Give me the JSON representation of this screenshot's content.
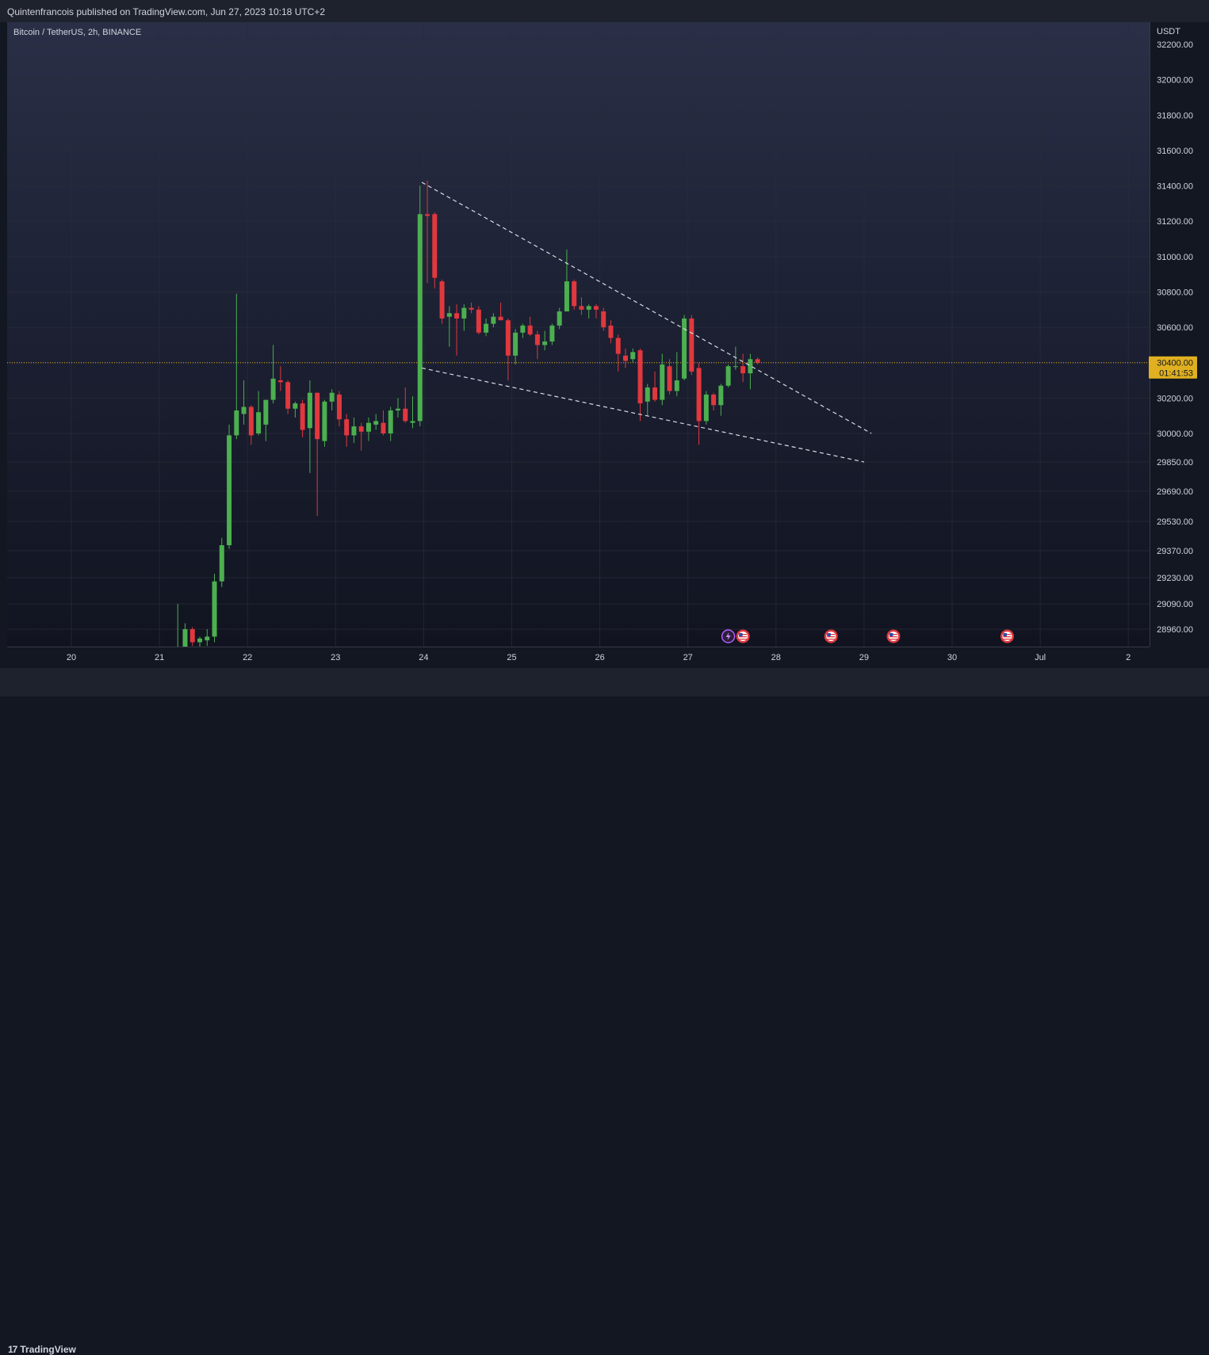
{
  "header": {
    "publish_text": "Quintenfrancois published on TradingView.com, Jun 27, 2023 10:18 UTC+2"
  },
  "footer": {
    "brand": "TradingView",
    "brand_mark": "17"
  },
  "chart_data": {
    "type": "candlestick",
    "title": "Bitcoin / TetherUS, 2h, BINANCE",
    "currency": "USDT",
    "y_ticks": [
      "32200.00",
      "32000.00",
      "31800.00",
      "31600.00",
      "31400.00",
      "31200.00",
      "31000.00",
      "30800.00",
      "30600.00",
      "30400.00",
      "30200.00",
      "30000.00",
      "29850.00",
      "29690.00",
      "29530.00",
      "29370.00",
      "29230.00",
      "29090.00",
      "28960.00"
    ],
    "x_ticks": [
      "20",
      "21",
      "22",
      "23",
      "24",
      "25",
      "26",
      "27",
      "28",
      "29",
      "30",
      "Jul",
      "2"
    ],
    "last_price": "30400.00",
    "countdown": "01:41:53",
    "colors": {
      "up": "#4caf50",
      "down": "#e0383e",
      "price_line": "#e0b020",
      "trendline": "#d8dce6"
    },
    "candles": [
      {
        "t": "21 05:00",
        "o": 28820,
        "h": 29090,
        "l": 28790,
        "c": 28850
      },
      {
        "t": "21 07:00",
        "o": 28850,
        "h": 28990,
        "l": 28800,
        "c": 28960
      },
      {
        "t": "21 09:00",
        "o": 28960,
        "h": 28970,
        "l": 28870,
        "c": 28890
      },
      {
        "t": "21 11:00",
        "o": 28890,
        "h": 28920,
        "l": 28850,
        "c": 28910
      },
      {
        "t": "21 13:00",
        "o": 28900,
        "h": 28960,
        "l": 28870,
        "c": 28920
      },
      {
        "t": "21 15:00",
        "o": 28920,
        "h": 29250,
        "l": 28890,
        "c": 29210
      },
      {
        "t": "21 17:00",
        "o": 29210,
        "h": 29440,
        "l": 29180,
        "c": 29400
      },
      {
        "t": "21 19:00",
        "o": 29400,
        "h": 30050,
        "l": 29380,
        "c": 29990
      },
      {
        "t": "21 21:00",
        "o": 29990,
        "h": 30790,
        "l": 29970,
        "c": 30130
      },
      {
        "t": "21 23:00",
        "o": 30110,
        "h": 30300,
        "l": 30050,
        "c": 30150
      },
      {
        "t": "22 01:00",
        "o": 30150,
        "h": 30160,
        "l": 29940,
        "c": 29990
      },
      {
        "t": "22 03:00",
        "o": 30000,
        "h": 30240,
        "l": 29990,
        "c": 30120
      },
      {
        "t": "22 05:00",
        "o": 30050,
        "h": 30190,
        "l": 29960,
        "c": 30190
      },
      {
        "t": "22 07:00",
        "o": 30190,
        "h": 30500,
        "l": 30170,
        "c": 30310
      },
      {
        "t": "22 09:00",
        "o": 30300,
        "h": 30380,
        "l": 30240,
        "c": 30290
      },
      {
        "t": "22 11:00",
        "o": 30290,
        "h": 30300,
        "l": 30110,
        "c": 30140
      },
      {
        "t": "22 13:00",
        "o": 30140,
        "h": 30180,
        "l": 30090,
        "c": 30170
      },
      {
        "t": "22 15:00",
        "o": 30170,
        "h": 30190,
        "l": 29980,
        "c": 30020
      },
      {
        "t": "22 17:00",
        "o": 30030,
        "h": 30300,
        "l": 29790,
        "c": 30230
      },
      {
        "t": "22 19:00",
        "o": 30230,
        "h": 30230,
        "l": 29560,
        "c": 29970
      },
      {
        "t": "22 21:00",
        "o": 29960,
        "h": 30190,
        "l": 29930,
        "c": 30180
      },
      {
        "t": "22 23:00",
        "o": 30180,
        "h": 30250,
        "l": 30130,
        "c": 30230
      },
      {
        "t": "23 01:00",
        "o": 30220,
        "h": 30240,
        "l": 30040,
        "c": 30080
      },
      {
        "t": "23 03:00",
        "o": 30080,
        "h": 30110,
        "l": 29930,
        "c": 29990
      },
      {
        "t": "23 05:00",
        "o": 29990,
        "h": 30090,
        "l": 29950,
        "c": 30040
      },
      {
        "t": "23 07:00",
        "o": 30040,
        "h": 30060,
        "l": 29910,
        "c": 30010
      },
      {
        "t": "23 09:00",
        "o": 30010,
        "h": 30090,
        "l": 29960,
        "c": 30060
      },
      {
        "t": "23 11:00",
        "o": 30050,
        "h": 30110,
        "l": 30020,
        "c": 30070
      },
      {
        "t": "23 13:00",
        "o": 30060,
        "h": 30130,
        "l": 29990,
        "c": 30000
      },
      {
        "t": "23 15:00",
        "o": 30000,
        "h": 30150,
        "l": 29960,
        "c": 30130
      },
      {
        "t": "23 17:00",
        "o": 30130,
        "h": 30200,
        "l": 30090,
        "c": 30140
      },
      {
        "t": "23 19:00",
        "o": 30140,
        "h": 30260,
        "l": 30060,
        "c": 30070
      },
      {
        "t": "23 21:00",
        "o": 30060,
        "h": 30210,
        "l": 30030,
        "c": 30070
      },
      {
        "t": "23 23:00",
        "o": 30070,
        "h": 31400,
        "l": 30040,
        "c": 31240
      },
      {
        "t": "24 01:00",
        "o": 31240,
        "h": 31430,
        "l": 30850,
        "c": 31230
      },
      {
        "t": "24 03:00",
        "o": 31240,
        "h": 31250,
        "l": 30820,
        "c": 30880
      },
      {
        "t": "24 05:00",
        "o": 30860,
        "h": 30870,
        "l": 30620,
        "c": 30650
      },
      {
        "t": "24 07:00",
        "o": 30660,
        "h": 30720,
        "l": 30490,
        "c": 30680
      },
      {
        "t": "24 09:00",
        "o": 30680,
        "h": 30730,
        "l": 30440,
        "c": 30650
      },
      {
        "t": "24 11:00",
        "o": 30650,
        "h": 30730,
        "l": 30580,
        "c": 30710
      },
      {
        "t": "24 13:00",
        "o": 30710,
        "h": 30740,
        "l": 30680,
        "c": 30700
      },
      {
        "t": "24 15:00",
        "o": 30700,
        "h": 30720,
        "l": 30560,
        "c": 30570
      },
      {
        "t": "24 17:00",
        "o": 30570,
        "h": 30650,
        "l": 30550,
        "c": 30620
      },
      {
        "t": "24 19:00",
        "o": 30620,
        "h": 30680,
        "l": 30600,
        "c": 30660
      },
      {
        "t": "24 21:00",
        "o": 30660,
        "h": 30740,
        "l": 30640,
        "c": 30640
      },
      {
        "t": "24 23:00",
        "o": 30640,
        "h": 30650,
        "l": 30300,
        "c": 30440
      },
      {
        "t": "25 01:00",
        "o": 30440,
        "h": 30590,
        "l": 30390,
        "c": 30570
      },
      {
        "t": "25 03:00",
        "o": 30570,
        "h": 30620,
        "l": 30540,
        "c": 30610
      },
      {
        "t": "25 05:00",
        "o": 30610,
        "h": 30660,
        "l": 30550,
        "c": 30560
      },
      {
        "t": "25 07:00",
        "o": 30560,
        "h": 30580,
        "l": 30420,
        "c": 30500
      },
      {
        "t": "25 09:00",
        "o": 30500,
        "h": 30580,
        "l": 30470,
        "c": 30520
      },
      {
        "t": "25 11:00",
        "o": 30520,
        "h": 30620,
        "l": 30500,
        "c": 30610
      },
      {
        "t": "25 13:00",
        "o": 30610,
        "h": 30710,
        "l": 30590,
        "c": 30690
      },
      {
        "t": "25 15:00",
        "o": 30690,
        "h": 31040,
        "l": 30690,
        "c": 30860
      },
      {
        "t": "25 17:00",
        "o": 30860,
        "h": 30870,
        "l": 30700,
        "c": 30720
      },
      {
        "t": "25 19:00",
        "o": 30720,
        "h": 30770,
        "l": 30670,
        "c": 30700
      },
      {
        "t": "25 21:00",
        "o": 30700,
        "h": 30730,
        "l": 30650,
        "c": 30720
      },
      {
        "t": "25 23:00",
        "o": 30720,
        "h": 30730,
        "l": 30650,
        "c": 30700
      },
      {
        "t": "26 01:00",
        "o": 30690,
        "h": 30710,
        "l": 30580,
        "c": 30600
      },
      {
        "t": "26 03:00",
        "o": 30610,
        "h": 30640,
        "l": 30510,
        "c": 30540
      },
      {
        "t": "26 05:00",
        "o": 30540,
        "h": 30560,
        "l": 30350,
        "c": 30450
      },
      {
        "t": "26 07:00",
        "o": 30440,
        "h": 30480,
        "l": 30370,
        "c": 30410
      },
      {
        "t": "26 09:00",
        "o": 30420,
        "h": 30480,
        "l": 30400,
        "c": 30460
      },
      {
        "t": "26 11:00",
        "o": 30470,
        "h": 30480,
        "l": 30070,
        "c": 30170
      },
      {
        "t": "26 13:00",
        "o": 30180,
        "h": 30280,
        "l": 30100,
        "c": 30260
      },
      {
        "t": "26 15:00",
        "o": 30260,
        "h": 30350,
        "l": 30180,
        "c": 30190
      },
      {
        "t": "26 17:00",
        "o": 30190,
        "h": 30450,
        "l": 30160,
        "c": 30390
      },
      {
        "t": "26 19:00",
        "o": 30380,
        "h": 30420,
        "l": 30220,
        "c": 30240
      },
      {
        "t": "26 21:00",
        "o": 30240,
        "h": 30460,
        "l": 30210,
        "c": 30300
      },
      {
        "t": "26 23:00",
        "o": 30310,
        "h": 30670,
        "l": 30300,
        "c": 30650
      },
      {
        "t": "27 01:00",
        "o": 30650,
        "h": 30670,
        "l": 30330,
        "c": 30350
      },
      {
        "t": "27 03:00",
        "o": 30370,
        "h": 30400,
        "l": 29940,
        "c": 30070
      },
      {
        "t": "27 05:00",
        "o": 30070,
        "h": 30240,
        "l": 30050,
        "c": 30220
      },
      {
        "t": "27 07:00",
        "o": 30220,
        "h": 30230,
        "l": 30130,
        "c": 30160
      },
      {
        "t": "27 09:00",
        "o": 30160,
        "h": 30280,
        "l": 30100,
        "c": 30270
      },
      {
        "t": "27 11:00",
        "o": 30270,
        "h": 30390,
        "l": 30260,
        "c": 30380
      },
      {
        "t": "27 13:00",
        "o": 30380,
        "h": 30490,
        "l": 30360,
        "c": 30380
      },
      {
        "t": "27 15:00",
        "o": 30380,
        "h": 30450,
        "l": 30290,
        "c": 30340
      },
      {
        "t": "27 17:00",
        "o": 30340,
        "h": 30450,
        "l": 30250,
        "c": 30420
      },
      {
        "t": "27 19:00",
        "o": 30420,
        "h": 30430,
        "l": 30390,
        "c": 30400
      }
    ],
    "trendlines": [
      {
        "name": "upper-trendline",
        "from": {
          "t": "23 23:30",
          "p": 31420
        },
        "to": {
          "t": "29 02:00",
          "p": 30000
        }
      },
      {
        "name": "lower-trendline",
        "from": {
          "t": "23 23:30",
          "p": 30370
        },
        "to": {
          "t": "29 00:00",
          "p": 29850
        }
      }
    ],
    "events": [
      {
        "t": "27 11:00",
        "icon": "lightning-event-icon"
      },
      {
        "t": "27 15:00",
        "icon": "us-flag-event-icon"
      },
      {
        "t": "28 15:00",
        "icon": "us-flag-event-icon"
      },
      {
        "t": "29 08:00",
        "icon": "us-flag-event-icon"
      },
      {
        "t": "30 15:00",
        "icon": "us-flag-event-icon"
      }
    ]
  }
}
